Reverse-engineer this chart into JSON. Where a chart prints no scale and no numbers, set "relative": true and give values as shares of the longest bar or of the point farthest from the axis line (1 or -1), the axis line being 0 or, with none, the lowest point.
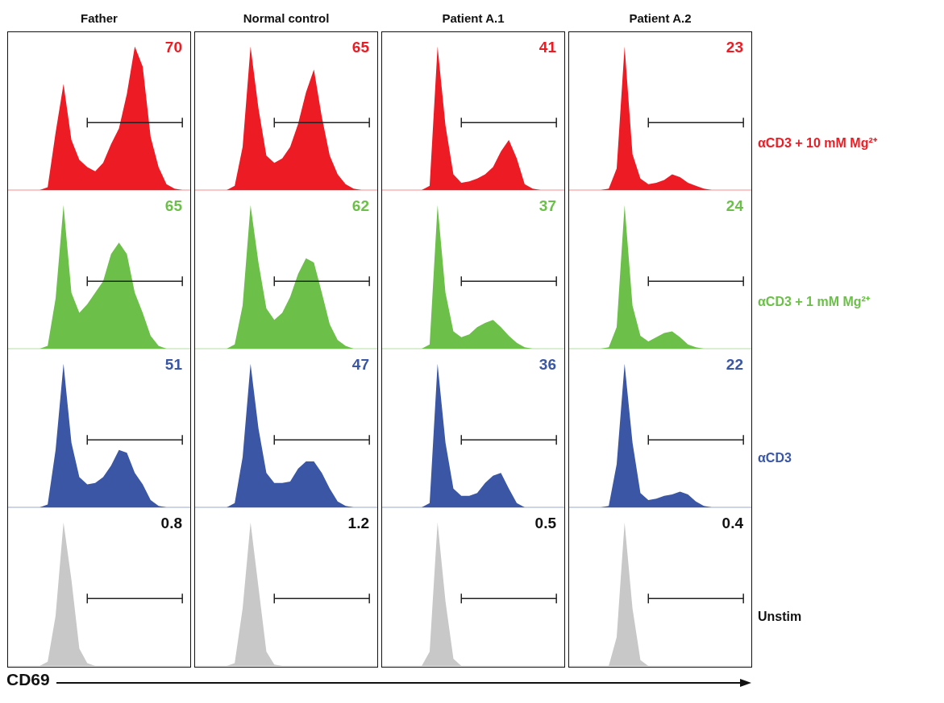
{
  "chart_data": [
    {
      "type": "area",
      "relative": true,
      "title": "Father",
      "categories": [
        null,
        null,
        null,
        null,
        null,
        null,
        null,
        null,
        null,
        null,
        null,
        null,
        null,
        null,
        null,
        null,
        null,
        null,
        null,
        null,
        null,
        null,
        null,
        null
      ],
      "annotations": [
        "70"
      ],
      "series": [
        {
          "color": "#ed1c24",
          "values": [
            0,
            0,
            0,
            0,
            0,
            0.02,
            0.4,
            0.74,
            0.35,
            0.21,
            0.16,
            0.13,
            0.19,
            0.32,
            0.43,
            0.67,
            1,
            0.86,
            0.37,
            0.16,
            0.04,
            0.01,
            0,
            0
          ]
        },
        {
          "type": "line",
          "color": "#222222",
          "values": [
            null,
            null,
            null,
            null,
            null,
            null,
            null,
            null,
            null,
            null,
            0.47,
            0.47,
            0.47,
            0.47,
            0.47,
            0.47,
            0.47,
            0.47,
            0.47,
            0.47,
            0.47,
            0.47,
            0.47,
            null
          ]
        }
      ]
    },
    {
      "type": "area",
      "relative": true,
      "title": "Normal control",
      "categories": [
        null,
        null,
        null,
        null,
        null,
        null,
        null,
        null,
        null,
        null,
        null,
        null,
        null,
        null,
        null,
        null,
        null,
        null,
        null,
        null,
        null,
        null,
        null,
        null
      ],
      "annotations": [
        "65"
      ],
      "series": [
        {
          "color": "#ed1c24",
          "values": [
            0,
            0,
            0,
            0,
            0,
            0.03,
            0.3,
            1,
            0.57,
            0.24,
            0.19,
            0.22,
            0.3,
            0.46,
            0.68,
            0.84,
            0.51,
            0.24,
            0.11,
            0.04,
            0.01,
            0,
            0,
            0
          ]
        },
        {
          "type": "line",
          "color": "#222222",
          "values": [
            null,
            null,
            null,
            null,
            null,
            null,
            null,
            null,
            null,
            null,
            0.47,
            0.47,
            0.47,
            0.47,
            0.47,
            0.47,
            0.47,
            0.47,
            0.47,
            0.47,
            0.47,
            0.47,
            0.47,
            null
          ]
        }
      ]
    },
    {
      "type": "area",
      "relative": true,
      "title": "Patient A.1",
      "categories": [
        null,
        null,
        null,
        null,
        null,
        null,
        null,
        null,
        null,
        null,
        null,
        null,
        null,
        null,
        null,
        null,
        null,
        null,
        null,
        null,
        null,
        null,
        null,
        null
      ],
      "annotations": [
        "41"
      ],
      "series": [
        {
          "color": "#ed1c24",
          "values": [
            0,
            0,
            0,
            0,
            0,
            0,
            0.03,
            1,
            0.45,
            0.11,
            0.05,
            0.06,
            0.08,
            0.11,
            0.16,
            0.27,
            0.35,
            0.22,
            0.04,
            0.01,
            0,
            0,
            0,
            0
          ]
        },
        {
          "type": "line",
          "color": "#222222",
          "values": [
            null,
            null,
            null,
            null,
            null,
            null,
            null,
            null,
            null,
            null,
            0.47,
            0.47,
            0.47,
            0.47,
            0.47,
            0.47,
            0.47,
            0.47,
            0.47,
            0.47,
            0.47,
            0.47,
            0.47,
            null
          ]
        }
      ]
    },
    {
      "type": "area",
      "relative": true,
      "title": "Patient A.2",
      "categories": [
        null,
        null,
        null,
        null,
        null,
        null,
        null,
        null,
        null,
        null,
        null,
        null,
        null,
        null,
        null,
        null,
        null,
        null,
        null,
        null,
        null,
        null,
        null,
        null
      ],
      "annotations": [
        "23"
      ],
      "series": [
        {
          "name": "αCD3 + 10 mM Mg²⁺",
          "color": "#ed1c24",
          "values": [
            0,
            0,
            0,
            0,
            0,
            0.01,
            0.15,
            1,
            0.25,
            0.08,
            0.04,
            0.05,
            0.07,
            0.11,
            0.09,
            0.05,
            0.03,
            0.01,
            0,
            0,
            0,
            0,
            0,
            0
          ]
        },
        {
          "type": "line",
          "color": "#222222",
          "values": [
            null,
            null,
            null,
            null,
            null,
            null,
            null,
            null,
            null,
            null,
            0.47,
            0.47,
            0.47,
            0.47,
            0.47,
            0.47,
            0.47,
            0.47,
            0.47,
            0.47,
            0.47,
            0.47,
            0.47,
            null
          ]
        }
      ]
    },
    {
      "type": "area",
      "relative": true,
      "categories": [
        null,
        null,
        null,
        null,
        null,
        null,
        null,
        null,
        null,
        null,
        null,
        null,
        null,
        null,
        null,
        null,
        null,
        null,
        null,
        null,
        null,
        null,
        null,
        null
      ],
      "annotations": [
        "65"
      ],
      "series": [
        {
          "color": "#6cc04a",
          "values": [
            0,
            0,
            0,
            0,
            0,
            0.02,
            0.35,
            1,
            0.39,
            0.25,
            0.31,
            0.39,
            0.47,
            0.66,
            0.74,
            0.66,
            0.39,
            0.25,
            0.09,
            0.02,
            0,
            0,
            0,
            0
          ]
        },
        {
          "type": "line",
          "color": "#222222",
          "values": [
            null,
            null,
            null,
            null,
            null,
            null,
            null,
            null,
            null,
            null,
            0.47,
            0.47,
            0.47,
            0.47,
            0.47,
            0.47,
            0.47,
            0.47,
            0.47,
            0.47,
            0.47,
            0.47,
            0.47,
            null
          ]
        }
      ]
    },
    {
      "type": "area",
      "relative": true,
      "categories": [
        null,
        null,
        null,
        null,
        null,
        null,
        null,
        null,
        null,
        null,
        null,
        null,
        null,
        null,
        null,
        null,
        null,
        null,
        null,
        null,
        null,
        null,
        null,
        null
      ],
      "annotations": [
        "62"
      ],
      "series": [
        {
          "color": "#6cc04a",
          "values": [
            0,
            0,
            0,
            0,
            0,
            0.03,
            0.3,
            1,
            0.6,
            0.28,
            0.2,
            0.25,
            0.36,
            0.52,
            0.63,
            0.6,
            0.39,
            0.17,
            0.06,
            0.02,
            0,
            0,
            0,
            0
          ]
        },
        {
          "type": "line",
          "color": "#222222",
          "values": [
            null,
            null,
            null,
            null,
            null,
            null,
            null,
            null,
            null,
            null,
            0.47,
            0.47,
            0.47,
            0.47,
            0.47,
            0.47,
            0.47,
            0.47,
            0.47,
            0.47,
            0.47,
            0.47,
            0.47,
            null
          ]
        }
      ]
    },
    {
      "type": "area",
      "relative": true,
      "categories": [
        null,
        null,
        null,
        null,
        null,
        null,
        null,
        null,
        null,
        null,
        null,
        null,
        null,
        null,
        null,
        null,
        null,
        null,
        null,
        null,
        null,
        null,
        null,
        null
      ],
      "annotations": [
        "37"
      ],
      "series": [
        {
          "color": "#6cc04a",
          "values": [
            0,
            0,
            0,
            0,
            0,
            0,
            0.03,
            1,
            0.39,
            0.12,
            0.08,
            0.1,
            0.15,
            0.18,
            0.2,
            0.15,
            0.09,
            0.04,
            0.01,
            0,
            0,
            0,
            0,
            0
          ]
        },
        {
          "type": "line",
          "color": "#222222",
          "values": [
            null,
            null,
            null,
            null,
            null,
            null,
            null,
            null,
            null,
            null,
            0.47,
            0.47,
            0.47,
            0.47,
            0.47,
            0.47,
            0.47,
            0.47,
            0.47,
            0.47,
            0.47,
            0.47,
            0.47,
            null
          ]
        }
      ]
    },
    {
      "type": "area",
      "relative": true,
      "categories": [
        null,
        null,
        null,
        null,
        null,
        null,
        null,
        null,
        null,
        null,
        null,
        null,
        null,
        null,
        null,
        null,
        null,
        null,
        null,
        null,
        null,
        null,
        null,
        null
      ],
      "annotations": [
        "24"
      ],
      "series": [
        {
          "name": "αCD3 + 1 mM Mg²⁺",
          "color": "#6cc04a",
          "values": [
            0,
            0,
            0,
            0,
            0,
            0.01,
            0.15,
            1,
            0.3,
            0.09,
            0.05,
            0.08,
            0.11,
            0.12,
            0.08,
            0.03,
            0.01,
            0,
            0,
            0,
            0,
            0,
            0,
            0
          ]
        },
        {
          "type": "line",
          "color": "#222222",
          "values": [
            null,
            null,
            null,
            null,
            null,
            null,
            null,
            null,
            null,
            null,
            0.47,
            0.47,
            0.47,
            0.47,
            0.47,
            0.47,
            0.47,
            0.47,
            0.47,
            0.47,
            0.47,
            0.47,
            0.47,
            null
          ]
        }
      ]
    },
    {
      "type": "area",
      "relative": true,
      "categories": [
        null,
        null,
        null,
        null,
        null,
        null,
        null,
        null,
        null,
        null,
        null,
        null,
        null,
        null,
        null,
        null,
        null,
        null,
        null,
        null,
        null,
        null,
        null,
        null
      ],
      "annotations": [
        "51"
      ],
      "series": [
        {
          "color": "#3a56a5",
          "values": [
            0,
            0,
            0,
            0,
            0,
            0.02,
            0.4,
            1,
            0.45,
            0.21,
            0.16,
            0.17,
            0.21,
            0.29,
            0.4,
            0.38,
            0.24,
            0.16,
            0.05,
            0.01,
            0,
            0,
            0,
            0
          ]
        },
        {
          "type": "line",
          "color": "#222222",
          "values": [
            null,
            null,
            null,
            null,
            null,
            null,
            null,
            null,
            null,
            null,
            0.47,
            0.47,
            0.47,
            0.47,
            0.47,
            0.47,
            0.47,
            0.47,
            0.47,
            0.47,
            0.47,
            0.47,
            0.47,
            null
          ]
        }
      ]
    },
    {
      "type": "area",
      "relative": true,
      "categories": [
        null,
        null,
        null,
        null,
        null,
        null,
        null,
        null,
        null,
        null,
        null,
        null,
        null,
        null,
        null,
        null,
        null,
        null,
        null,
        null,
        null,
        null,
        null,
        null
      ],
      "annotations": [
        "47"
      ],
      "series": [
        {
          "color": "#3a56a5",
          "values": [
            0,
            0,
            0,
            0,
            0,
            0.03,
            0.35,
            1,
            0.55,
            0.24,
            0.17,
            0.17,
            0.18,
            0.27,
            0.32,
            0.32,
            0.24,
            0.13,
            0.04,
            0.01,
            0,
            0,
            0,
            0
          ]
        },
        {
          "type": "line",
          "color": "#222222",
          "values": [
            null,
            null,
            null,
            null,
            null,
            null,
            null,
            null,
            null,
            null,
            0.47,
            0.47,
            0.47,
            0.47,
            0.47,
            0.47,
            0.47,
            0.47,
            0.47,
            0.47,
            0.47,
            0.47,
            0.47,
            null
          ]
        }
      ]
    },
    {
      "type": "area",
      "relative": true,
      "categories": [
        null,
        null,
        null,
        null,
        null,
        null,
        null,
        null,
        null,
        null,
        null,
        null,
        null,
        null,
        null,
        null,
        null,
        null,
        null,
        null,
        null,
        null,
        null,
        null
      ],
      "annotations": [
        "36"
      ],
      "series": [
        {
          "color": "#3a56a5",
          "values": [
            0,
            0,
            0,
            0,
            0,
            0,
            0.03,
            1,
            0.45,
            0.13,
            0.08,
            0.08,
            0.1,
            0.17,
            0.22,
            0.24,
            0.13,
            0.03,
            0,
            0,
            0,
            0,
            0,
            0
          ]
        },
        {
          "type": "line",
          "color": "#222222",
          "values": [
            null,
            null,
            null,
            null,
            null,
            null,
            null,
            null,
            null,
            null,
            0.47,
            0.47,
            0.47,
            0.47,
            0.47,
            0.47,
            0.47,
            0.47,
            0.47,
            0.47,
            0.47,
            0.47,
            0.47,
            null
          ]
        }
      ]
    },
    {
      "type": "area",
      "relative": true,
      "categories": [
        null,
        null,
        null,
        null,
        null,
        null,
        null,
        null,
        null,
        null,
        null,
        null,
        null,
        null,
        null,
        null,
        null,
        null,
        null,
        null,
        null,
        null,
        null,
        null
      ],
      "annotations": [
        "22"
      ],
      "series": [
        {
          "name": "αCD3",
          "color": "#3a56a5",
          "values": [
            0,
            0,
            0,
            0,
            0,
            0.01,
            0.3,
            1,
            0.45,
            0.1,
            0.05,
            0.06,
            0.08,
            0.09,
            0.11,
            0.09,
            0.04,
            0.01,
            0,
            0,
            0,
            0,
            0,
            0
          ]
        },
        {
          "type": "line",
          "color": "#222222",
          "values": [
            null,
            null,
            null,
            null,
            null,
            null,
            null,
            null,
            null,
            null,
            0.47,
            0.47,
            0.47,
            0.47,
            0.47,
            0.47,
            0.47,
            0.47,
            0.47,
            0.47,
            0.47,
            0.47,
            0.47,
            null
          ]
        }
      ]
    },
    {
      "type": "area",
      "relative": true,
      "xlabel": "CD69",
      "categories": [
        null,
        null,
        null,
        null,
        null,
        null,
        null,
        null,
        null,
        null,
        null,
        null,
        null,
        null,
        null,
        null,
        null,
        null,
        null,
        null,
        null,
        null,
        null,
        null
      ],
      "annotations": [
        "0.8"
      ],
      "series": [
        {
          "color": "#c8c8c8",
          "values": [
            0,
            0,
            0,
            0,
            0,
            0.03,
            0.35,
            1,
            0.6,
            0.12,
            0.02,
            0,
            0,
            0,
            0,
            0,
            0,
            0,
            0,
            0,
            0,
            0,
            0,
            0
          ]
        },
        {
          "type": "line",
          "color": "#222222",
          "values": [
            null,
            null,
            null,
            null,
            null,
            null,
            null,
            null,
            null,
            null,
            0.47,
            0.47,
            0.47,
            0.47,
            0.47,
            0.47,
            0.47,
            0.47,
            0.47,
            0.47,
            0.47,
            0.47,
            0.47,
            null
          ]
        }
      ]
    },
    {
      "type": "area",
      "relative": true,
      "categories": [
        null,
        null,
        null,
        null,
        null,
        null,
        null,
        null,
        null,
        null,
        null,
        null,
        null,
        null,
        null,
        null,
        null,
        null,
        null,
        null,
        null,
        null,
        null,
        null
      ],
      "annotations": [
        "1.2"
      ],
      "series": [
        {
          "color": "#c8c8c8",
          "values": [
            0,
            0,
            0,
            0,
            0,
            0.02,
            0.4,
            1,
            0.55,
            0.1,
            0.01,
            0,
            0,
            0,
            0,
            0,
            0,
            0,
            0,
            0,
            0,
            0,
            0,
            0
          ]
        },
        {
          "type": "line",
          "color": "#222222",
          "values": [
            null,
            null,
            null,
            null,
            null,
            null,
            null,
            null,
            null,
            null,
            0.47,
            0.47,
            0.47,
            0.47,
            0.47,
            0.47,
            0.47,
            0.47,
            0.47,
            0.47,
            0.47,
            0.47,
            0.47,
            null
          ]
        }
      ]
    },
    {
      "type": "area",
      "relative": true,
      "categories": [
        null,
        null,
        null,
        null,
        null,
        null,
        null,
        null,
        null,
        null,
        null,
        null,
        null,
        null,
        null,
        null,
        null,
        null,
        null,
        null,
        null,
        null,
        null,
        null
      ],
      "annotations": [
        "0.5"
      ],
      "series": [
        {
          "color": "#c8c8c8",
          "values": [
            0,
            0,
            0,
            0,
            0,
            0,
            0.1,
            1,
            0.45,
            0.05,
            0,
            0,
            0,
            0,
            0,
            0,
            0,
            0,
            0,
            0,
            0,
            0,
            0,
            0
          ]
        },
        {
          "type": "line",
          "color": "#222222",
          "values": [
            null,
            null,
            null,
            null,
            null,
            null,
            null,
            null,
            null,
            null,
            0.47,
            0.47,
            0.47,
            0.47,
            0.47,
            0.47,
            0.47,
            0.47,
            0.47,
            0.47,
            0.47,
            0.47,
            0.47,
            null
          ]
        }
      ]
    },
    {
      "type": "area",
      "relative": true,
      "categories": [
        null,
        null,
        null,
        null,
        null,
        null,
        null,
        null,
        null,
        null,
        null,
        null,
        null,
        null,
        null,
        null,
        null,
        null,
        null,
        null,
        null,
        null,
        null,
        null
      ],
      "annotations": [
        "0.4"
      ],
      "series": [
        {
          "name": "Unstim",
          "color": "#c8c8c8",
          "values": [
            0,
            0,
            0,
            0,
            0,
            0,
            0.2,
            1,
            0.4,
            0.04,
            0,
            0,
            0,
            0,
            0,
            0,
            0,
            0,
            0,
            0,
            0,
            0,
            0,
            0
          ]
        },
        {
          "type": "line",
          "color": "#222222",
          "values": [
            null,
            null,
            null,
            null,
            null,
            null,
            null,
            null,
            null,
            null,
            0.47,
            0.47,
            0.47,
            0.47,
            0.47,
            0.47,
            0.47,
            0.47,
            0.47,
            0.47,
            0.47,
            0.47,
            0.47,
            null
          ]
        }
      ]
    }
  ]
}
